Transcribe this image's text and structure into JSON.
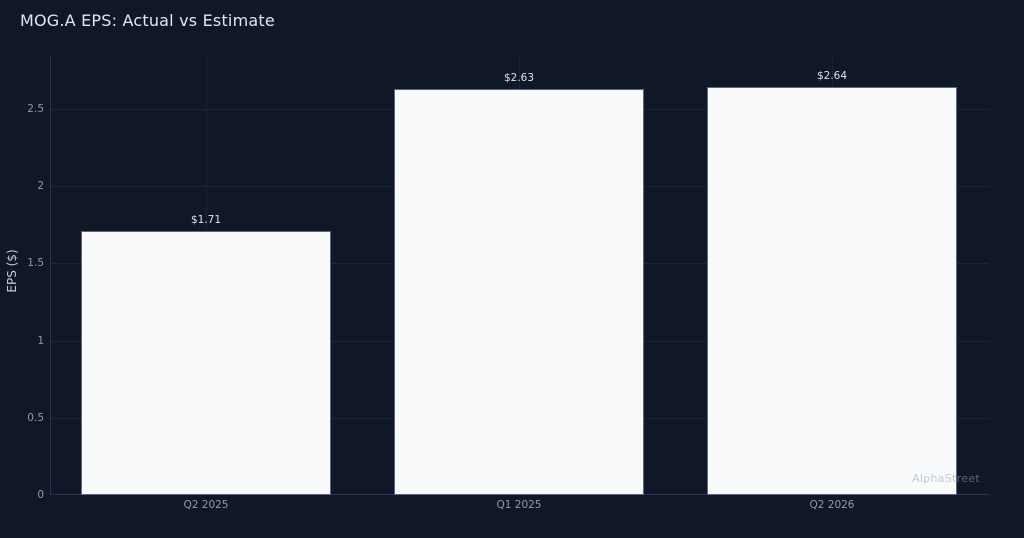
{
  "header": {
    "title": "MOG.A EPS: Actual vs Estimate"
  },
  "watermark": {
    "text": "AlphaStreet"
  },
  "chart_data": {
    "type": "bar",
    "title": "MOG.A EPS: Actual vs Estimate",
    "categories": [
      "Q2 2025",
      "Q1 2025",
      "Q2 2026"
    ],
    "values": [
      1.71,
      2.63,
      2.64
    ],
    "value_labels": [
      "$1.71",
      "$2.63",
      "$2.64"
    ],
    "xlabel": "",
    "ylabel": "EPS ($)",
    "ylim": [
      0,
      2.85
    ],
    "yticks": [
      0,
      0.5,
      1,
      1.5,
      2,
      2.5
    ],
    "ytick_labels": [
      "0",
      "0.5",
      "1",
      "1.5",
      "2",
      "2.5"
    ],
    "grid": true,
    "legend": false,
    "bar_width_fraction": 0.8,
    "colors": {
      "background": "#101828",
      "bar_fill": "#f8fafc",
      "bar_border": "#5d6880",
      "gridline": "#1c2639",
      "vertical_gridline": "#1a2335",
      "axis_line": "#2b3550",
      "title_text": "#e2e7ee",
      "tick_text": "#8e99a9",
      "value_label_text": "#dde3ea",
      "axis_label_text": "#c3ccd8",
      "watermark_text": "#94a3b8"
    }
  }
}
